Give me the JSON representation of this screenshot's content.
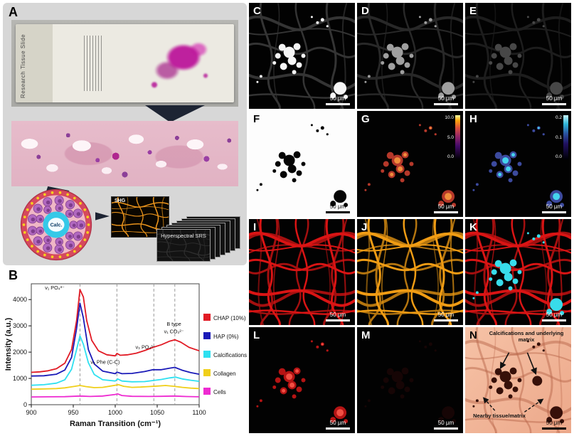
{
  "figure": {
    "panel_a": {
      "label": "A",
      "slide_text": "Research Tissue Slide",
      "calc_label": "Calc.",
      "shg_label": "SHG",
      "stack_label": "Hyperspectral SRS"
    },
    "panel_b": {
      "label": "B",
      "chart_data": {
        "type": "line",
        "title": "",
        "xlabel": "Raman Transition (cm⁻¹)",
        "ylabel": "Intensity (a.u.)",
        "xlim": [
          900,
          1100
        ],
        "ylim": [
          0,
          4600
        ],
        "xticks": [
          900,
          950,
          1000,
          1050,
          1100
        ],
        "yticks": [
          0,
          1000,
          2000,
          3000,
          4000
        ],
        "grid": false,
        "legend_position": "right",
        "dashed_lines_x": [
          958,
          1002,
          1046,
          1071
        ],
        "annotations": [
          {
            "text": "ν₁ PO₄³⁻",
            "x": 928,
            "y": 4380
          },
          {
            "text": "ν₄ Phe (C-C)",
            "x": 988,
            "y": 1560
          },
          {
            "text": "ν₃ PO₄³⁻",
            "x": 1036,
            "y": 2120
          },
          {
            "text": "B type",
            "x": 1070,
            "y": 3000
          },
          {
            "text": "ν₁ CO₃²⁻",
            "x": 1070,
            "y": 2720
          }
        ],
        "legend": [
          {
            "name": "CHAP (10%)",
            "color": "#e11a24"
          },
          {
            "name": "HAP (0%)",
            "color": "#1a1ab8"
          },
          {
            "name": "Calcifications",
            "color": "#2ee0f0"
          },
          {
            "name": "Collagen",
            "color": "#f0cf1a"
          },
          {
            "name": "Cells",
            "color": "#ee2bd1"
          }
        ],
        "series": [
          {
            "name": "CHAP (10%)",
            "color": "#e11a24",
            "points": [
              [
                900,
                1230
              ],
              [
                910,
                1250
              ],
              [
                920,
                1290
              ],
              [
                930,
                1370
              ],
              [
                940,
                1580
              ],
              [
                948,
                2100
              ],
              [
                954,
                3200
              ],
              [
                958,
                4380
              ],
              [
                962,
                4100
              ],
              [
                966,
                3200
              ],
              [
                972,
                2450
              ],
              [
                980,
                2050
              ],
              [
                990,
                1900
              ],
              [
                1000,
                1860
              ],
              [
                1002,
                1950
              ],
              [
                1006,
                1880
              ],
              [
                1015,
                1900
              ],
              [
                1025,
                1960
              ],
              [
                1035,
                2060
              ],
              [
                1045,
                2180
              ],
              [
                1055,
                2280
              ],
              [
                1065,
                2420
              ],
              [
                1071,
                2470
              ],
              [
                1078,
                2380
              ],
              [
                1088,
                2180
              ],
              [
                1100,
                2050
              ]
            ]
          },
          {
            "name": "HAP (0%)",
            "color": "#1a1ab8",
            "points": [
              [
                900,
                1090
              ],
              [
                915,
                1100
              ],
              [
                930,
                1160
              ],
              [
                940,
                1320
              ],
              [
                948,
                1800
              ],
              [
                954,
                2900
              ],
              [
                958,
                3860
              ],
              [
                962,
                3300
              ],
              [
                968,
                2100
              ],
              [
                975,
                1550
              ],
              [
                985,
                1280
              ],
              [
                1000,
                1180
              ],
              [
                1002,
                1240
              ],
              [
                1008,
                1180
              ],
              [
                1020,
                1190
              ],
              [
                1035,
                1260
              ],
              [
                1045,
                1330
              ],
              [
                1055,
                1330
              ],
              [
                1065,
                1390
              ],
              [
                1071,
                1420
              ],
              [
                1080,
                1310
              ],
              [
                1090,
                1220
              ],
              [
                1100,
                1160
              ]
            ]
          },
          {
            "name": "Calcifications",
            "color": "#2ee0f0",
            "points": [
              [
                900,
                740
              ],
              [
                915,
                760
              ],
              [
                930,
                820
              ],
              [
                940,
                950
              ],
              [
                948,
                1350
              ],
              [
                954,
                2100
              ],
              [
                958,
                2620
              ],
              [
                962,
                2300
              ],
              [
                968,
                1600
              ],
              [
                975,
                1150
              ],
              [
                985,
                950
              ],
              [
                1000,
                900
              ],
              [
                1003,
                980
              ],
              [
                1008,
                900
              ],
              [
                1020,
                870
              ],
              [
                1035,
                880
              ],
              [
                1045,
                920
              ],
              [
                1055,
                960
              ],
              [
                1065,
                1020
              ],
              [
                1072,
                1050
              ],
              [
                1080,
                980
              ],
              [
                1090,
                930
              ],
              [
                1100,
                890
              ]
            ]
          },
          {
            "name": "Collagen",
            "color": "#f0cf1a",
            "points": [
              [
                900,
                590
              ],
              [
                915,
                600
              ],
              [
                930,
                615
              ],
              [
                940,
                640
              ],
              [
                950,
                690
              ],
              [
                958,
                730
              ],
              [
                965,
                690
              ],
              [
                975,
                650
              ],
              [
                985,
                660
              ],
              [
                1000,
                740
              ],
              [
                1004,
                760
              ],
              [
                1010,
                700
              ],
              [
                1020,
                660
              ],
              [
                1030,
                670
              ],
              [
                1040,
                690
              ],
              [
                1050,
                710
              ],
              [
                1060,
                730
              ],
              [
                1070,
                700
              ],
              [
                1080,
                660
              ],
              [
                1090,
                630
              ],
              [
                1100,
                615
              ]
            ]
          },
          {
            "name": "Cells",
            "color": "#ee2bd1",
            "points": [
              [
                900,
                295
              ],
              [
                920,
                300
              ],
              [
                940,
                305
              ],
              [
                958,
                330
              ],
              [
                970,
                315
              ],
              [
                985,
                330
              ],
              [
                1000,
                390
              ],
              [
                1003,
                410
              ],
              [
                1008,
                350
              ],
              [
                1020,
                320
              ],
              [
                1040,
                315
              ],
              [
                1055,
                320
              ],
              [
                1070,
                330
              ],
              [
                1085,
                310
              ],
              [
                1100,
                300
              ]
            ]
          }
        ]
      }
    },
    "micro_panels": [
      {
        "label": "C",
        "scale_text": "50 µm"
      },
      {
        "label": "D",
        "scale_text": "50 µm"
      },
      {
        "label": "E",
        "scale_text": "50 µm"
      },
      {
        "label": "F",
        "scale_text": "50 µm"
      },
      {
        "label": "G",
        "scale_text": "50 µm"
      },
      {
        "label": "H",
        "scale_text": "50 µm"
      },
      {
        "label": "I",
        "scale_text": "50 µm"
      },
      {
        "label": "J",
        "scale_text": "50 µm"
      },
      {
        "label": "K",
        "scale_text": "50 µm"
      },
      {
        "label": "L",
        "scale_text": "50 µm"
      },
      {
        "label": "M",
        "scale_text": "50 µm"
      },
      {
        "label": "N",
        "scale_text": "50 µm",
        "annotations": [
          "Calcifications and underlying matrix",
          "Nearby tissue/matrix"
        ]
      }
    ],
    "colorbar_g": [
      "10.0",
      "5.0",
      "0.0"
    ],
    "colorbar_h": [
      "0.2",
      "0.1",
      "0.0"
    ]
  }
}
